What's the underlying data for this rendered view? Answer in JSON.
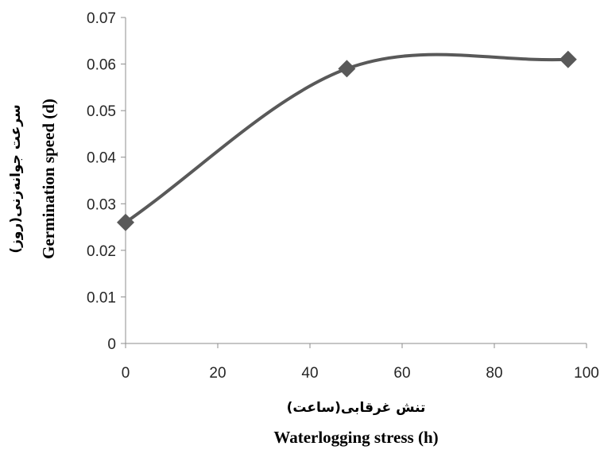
{
  "chart_data": {
    "type": "line",
    "x": [
      0,
      48,
      96
    ],
    "series": [
      {
        "values": [
          0.026,
          0.059,
          0.061
        ],
        "color": "#595959",
        "marker": "diamond",
        "smooth": true
      }
    ],
    "xlabel": "Waterlogging stress (h)",
    "xlabel_fa": "(ساعت)تنش غرقابی",
    "ylabel": "Germination speed (d)",
    "ylabel_fa": "(روز)سرعت جوانه‌زنی",
    "xlim": [
      0,
      100
    ],
    "ylim": [
      0,
      0.07
    ],
    "xticks": [
      "0",
      "20",
      "40",
      "60",
      "80",
      "100"
    ],
    "yticks": [
      "0",
      "0.01",
      "0.02",
      "0.03",
      "0.04",
      "0.05",
      "0.06",
      "0.07"
    ],
    "grid": false,
    "legend": "none"
  }
}
